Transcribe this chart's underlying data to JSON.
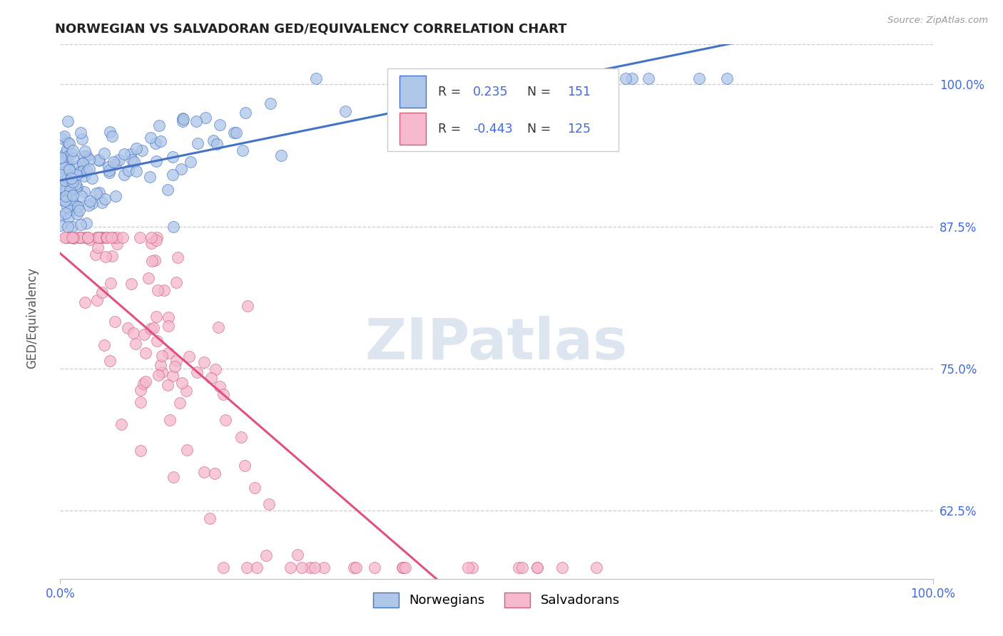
{
  "title": "NORWEGIAN VS SALVADORAN GED/EQUIVALENCY CORRELATION CHART",
  "ylabel": "GED/Equivalency",
  "source_text": "Source: ZipAtlas.com",
  "watermark": "ZIPatlas",
  "legend_labels": [
    "Norwegians",
    "Salvadorans"
  ],
  "r_norwegian": 0.235,
  "n_norwegian": 151,
  "r_salvadoran": -0.443,
  "n_salvadoran": 125,
  "xlim": [
    0.0,
    1.0
  ],
  "ylim": [
    0.565,
    1.035
  ],
  "xtick_positions": [
    0.0,
    1.0
  ],
  "xtick_labels": [
    "0.0%",
    "100.0%"
  ],
  "ytick_labels": [
    "62.5%",
    "75.0%",
    "87.5%",
    "100.0%"
  ],
  "ytick_values": [
    0.625,
    0.75,
    0.875,
    1.0
  ],
  "color_norwegian": "#aec6e8",
  "color_salvadoran": "#f5b8cc",
  "line_color_norwegian": "#4472c4",
  "line_color_salvadoran": "#e05080",
  "background_color": "#ffffff",
  "grid_color": "#cccccc",
  "title_color": "#222222",
  "title_fontsize": 13,
  "axis_label_color": "#555555",
  "tick_label_color": "#4169e1",
  "source_color": "#999999",
  "watermark_color": "#dde6f0"
}
